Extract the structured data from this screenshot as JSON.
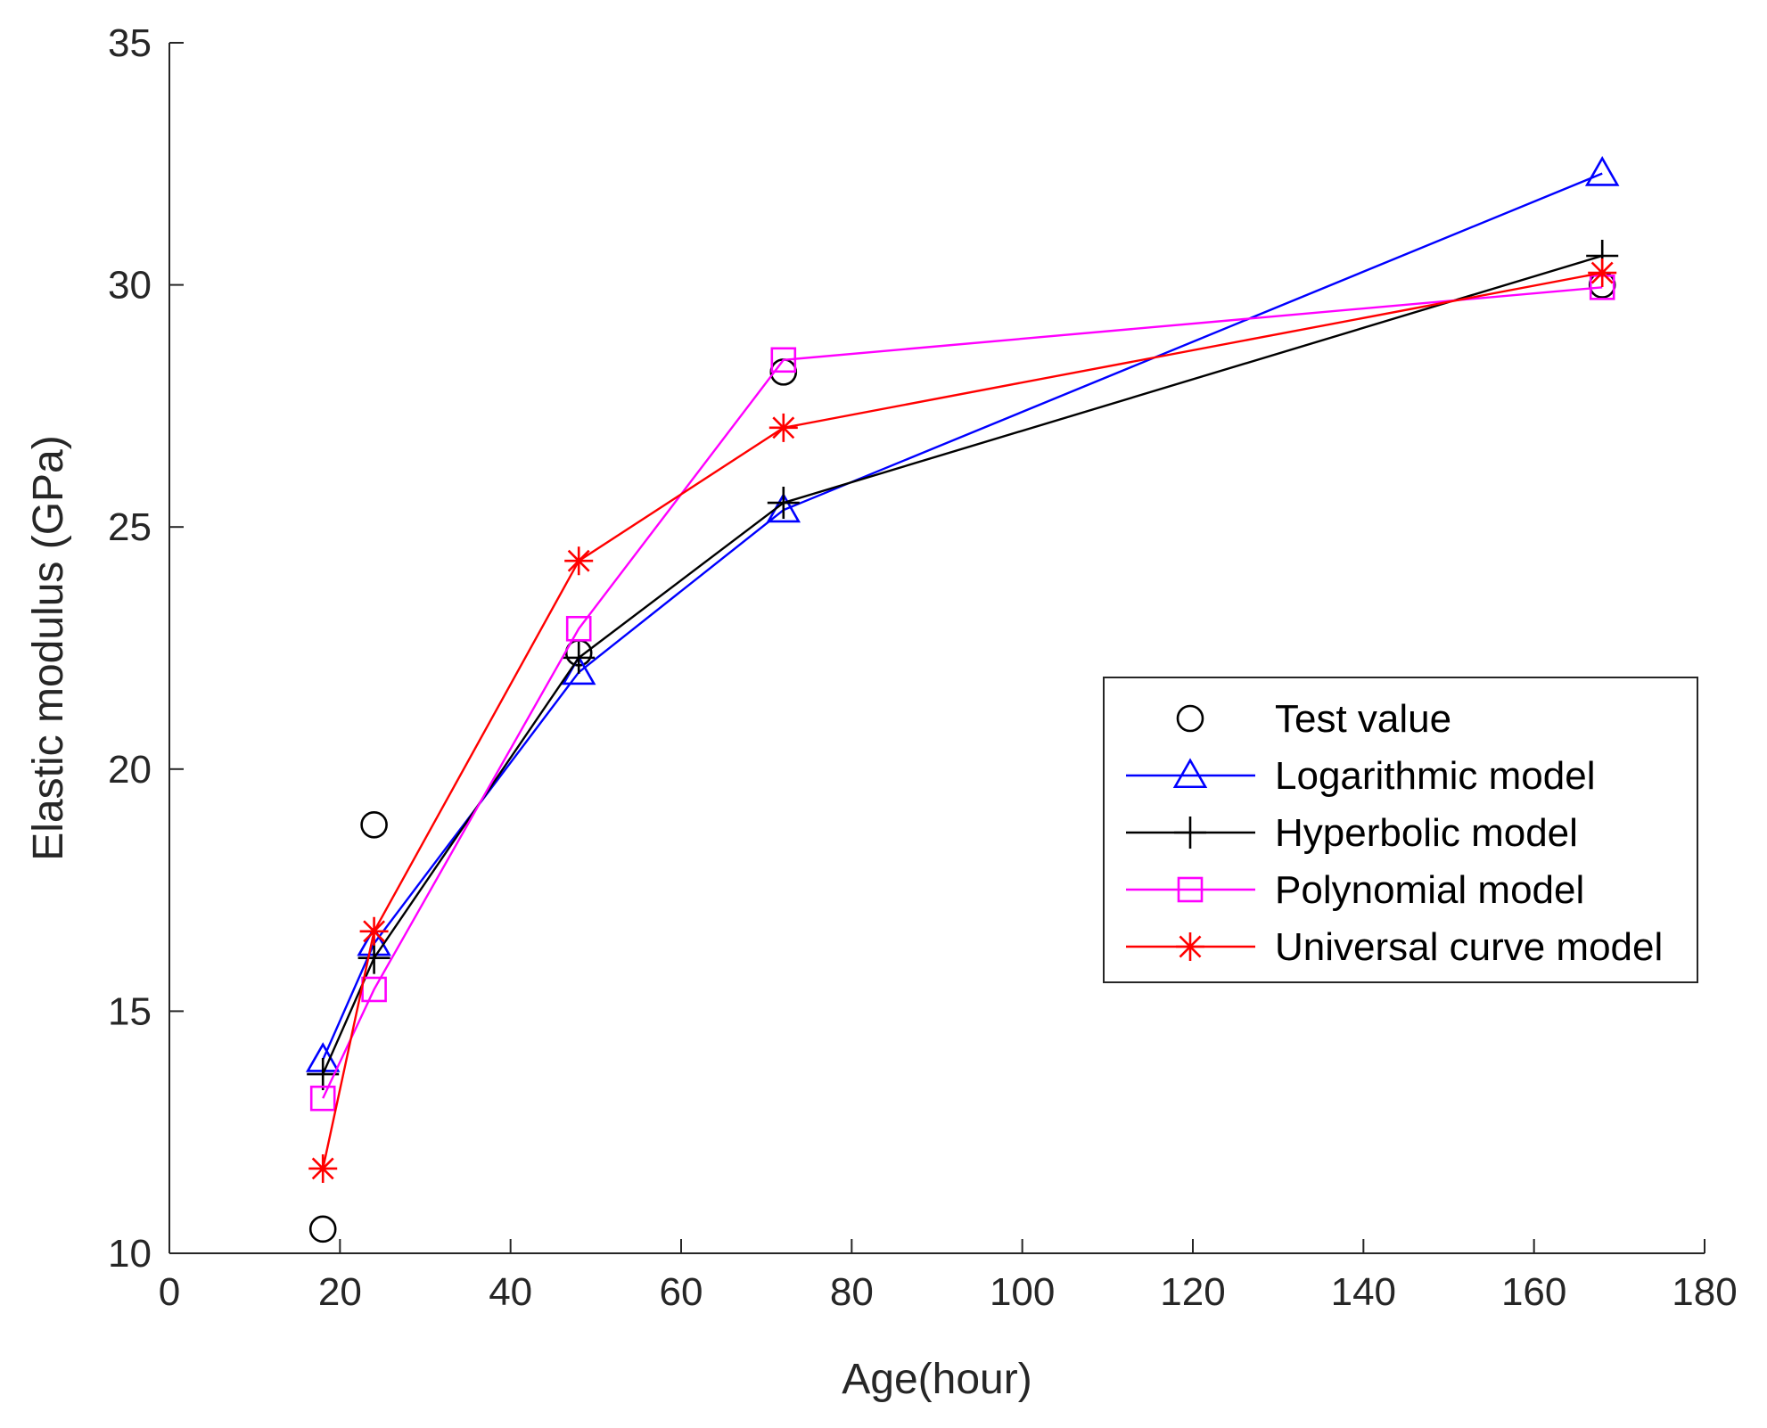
{
  "chart_data": {
    "type": "line",
    "title": "",
    "xlabel": "Age(hour)",
    "ylabel": "Elastic modulus (GPa)",
    "xlim": [
      0,
      180
    ],
    "ylim": [
      10,
      35
    ],
    "xticks": [
      0,
      20,
      40,
      60,
      80,
      100,
      120,
      140,
      160,
      180
    ],
    "yticks": [
      10,
      15,
      20,
      25,
      30,
      35
    ],
    "grid": false,
    "legend_position": "right",
    "series": [
      {
        "name": "Test value",
        "marker": "circle",
        "line": false,
        "color": "#000000",
        "x": [
          18,
          24,
          48,
          72,
          168
        ],
        "y": [
          10.5,
          18.85,
          22.4,
          28.2,
          30.0
        ]
      },
      {
        "name": "Logarithmic model",
        "marker": "triangle",
        "line": true,
        "color": "#0000ff",
        "x": [
          18,
          24,
          48,
          72,
          168
        ],
        "y": [
          14.0,
          16.4,
          22.0,
          25.35,
          32.3
        ]
      },
      {
        "name": "Hyperbolic model",
        "marker": "plus",
        "line": true,
        "color": "#000000",
        "x": [
          18,
          24,
          48,
          72,
          168
        ],
        "y": [
          13.7,
          16.1,
          22.3,
          25.5,
          30.6
        ]
      },
      {
        "name": "Polynomial model",
        "marker": "square",
        "line": true,
        "color": "#ff00ff",
        "x": [
          18,
          24,
          48,
          72,
          168
        ],
        "y": [
          13.2,
          15.45,
          22.9,
          28.45,
          29.95
        ]
      },
      {
        "name": "Universal curve model",
        "marker": "asterisk",
        "line": true,
        "color": "#ff0000",
        "x": [
          18,
          24,
          48,
          72,
          168
        ],
        "y": [
          11.75,
          16.65,
          24.3,
          27.05,
          30.25
        ]
      }
    ]
  }
}
